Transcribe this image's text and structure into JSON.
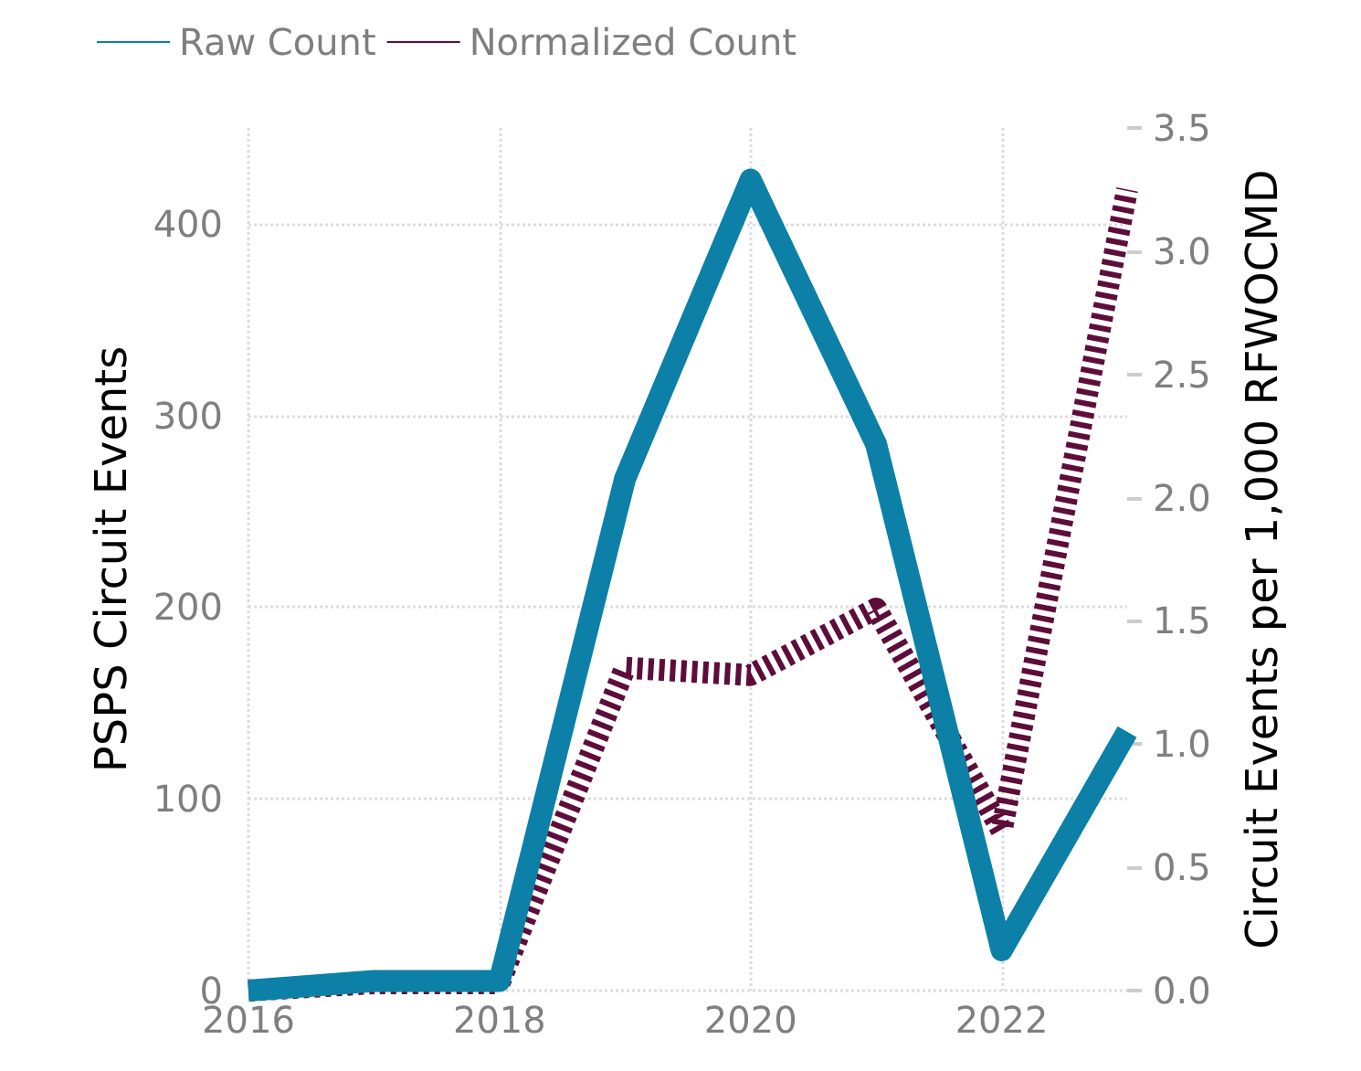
{
  "chart_data": {
    "type": "line",
    "x": [
      2016,
      2017,
      2018,
      2019,
      2020,
      2021,
      2022,
      2023
    ],
    "series": [
      {
        "name": "Raw Count",
        "color": "#0c80a6",
        "line_style": "solid",
        "values": [
          0,
          5,
          5,
          267,
          423,
          285,
          21,
          135
        ]
      },
      {
        "name": "Normalized Count",
        "color": "#5e0d3b",
        "line_style": "dotted",
        "axis": "y2",
        "values": [
          0,
          0.03,
          0.03,
          1.31,
          1.28,
          1.55,
          0.65,
          3.25
        ]
      }
    ],
    "xlim": [
      2016,
      2023
    ],
    "xticks": [
      2016,
      2018,
      2020,
      2022
    ],
    "ylim": [
      0,
      450
    ],
    "yticks": [
      0,
      100,
      200,
      300,
      400
    ],
    "y2lim": [
      0,
      3.5
    ],
    "y2ticks": [
      {
        "value": 0,
        "label": "0.0"
      },
      {
        "value": 0.5,
        "label": "0.5"
      },
      {
        "value": 1,
        "label": "1.0"
      },
      {
        "value": 1.5,
        "label": "1.5"
      },
      {
        "value": 2,
        "label": "2.0"
      },
      {
        "value": 2.5,
        "label": "2.5"
      },
      {
        "value": 3,
        "label": "3.0"
      },
      {
        "value": 3.5,
        "label": "3.5"
      }
    ],
    "ylabel": "PSPS Circuit Events",
    "y2label": "Circuit Events per 1,000 RFWOCMD",
    "grid": true,
    "legend": "top left",
    "marker": "none"
  }
}
